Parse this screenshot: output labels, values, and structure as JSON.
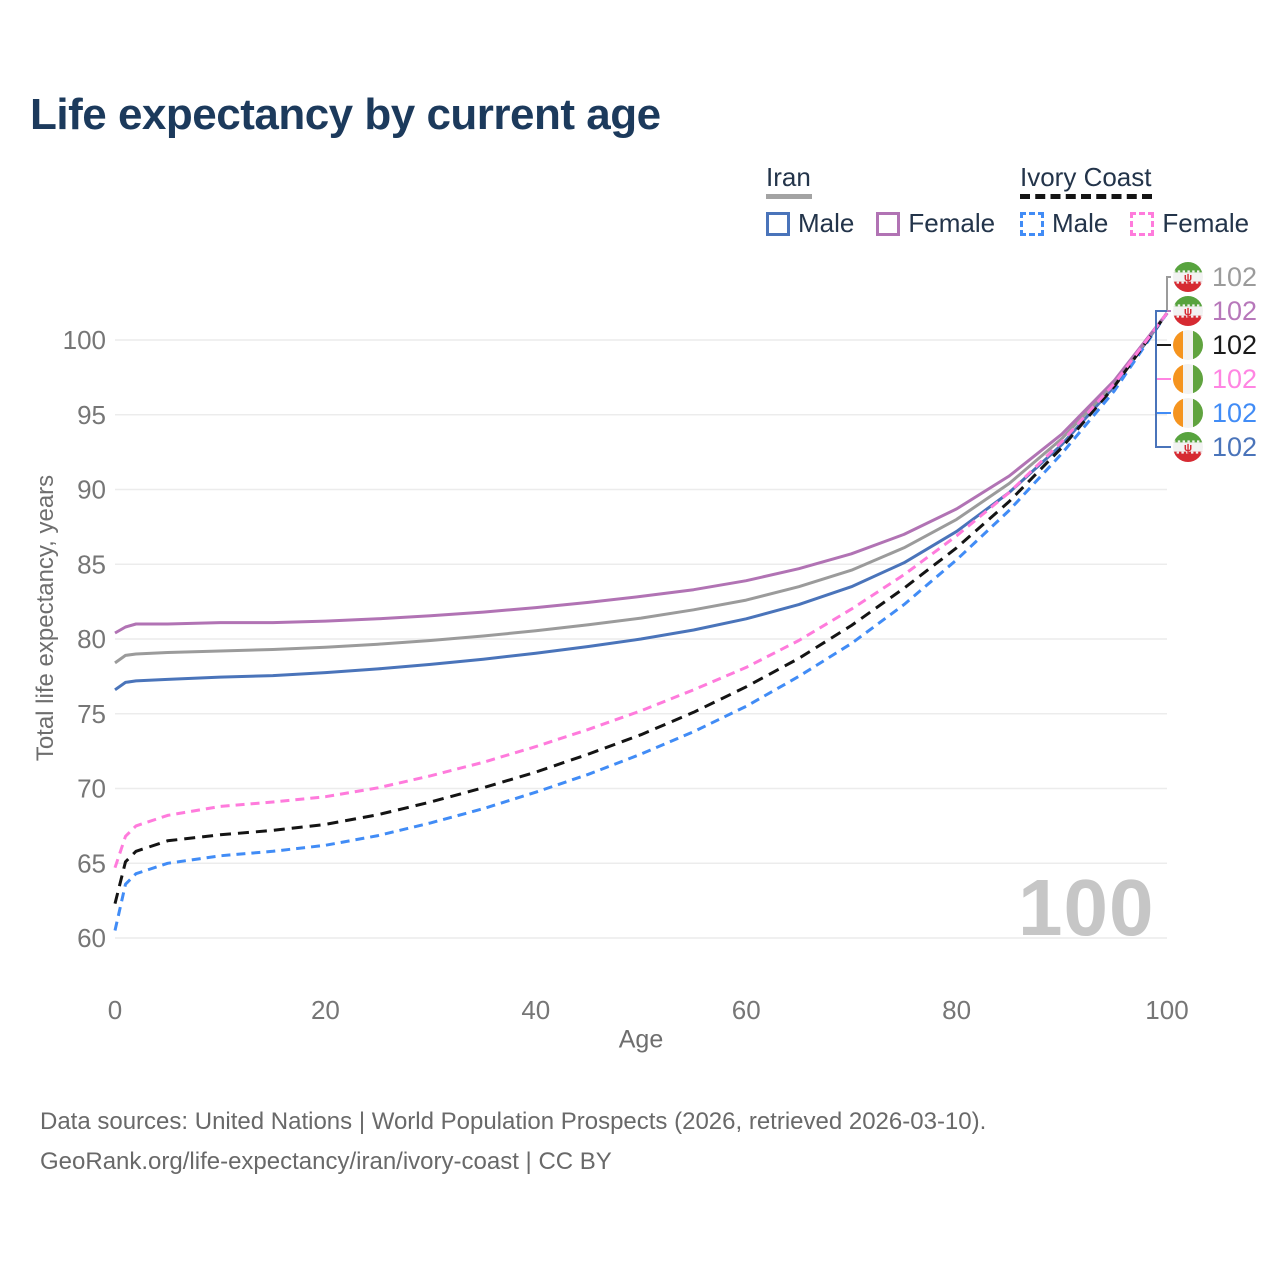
{
  "title": "Life expectancy by current age",
  "legend": {
    "groups": [
      {
        "id": "iran",
        "label": "Iran",
        "line_style": "solid",
        "line_color": "#a3a3a3",
        "items": [
          {
            "id": "iran-male",
            "label": "Male",
            "color": "#4a74ba",
            "style": "solid"
          },
          {
            "id": "iran-female",
            "label": "Female",
            "color": "#b173b4",
            "style": "solid"
          }
        ]
      },
      {
        "id": "ivory-coast",
        "label": "Ivory Coast",
        "line_style": "dashed",
        "line_color": "#141414",
        "items": [
          {
            "id": "ivory-coast-male",
            "label": "Male",
            "color": "#418cf6",
            "style": "dashed"
          },
          {
            "id": "ivory-coast-female",
            "label": "Female",
            "color": "#ff7bdc",
            "style": "dashed"
          }
        ]
      }
    ]
  },
  "axis": {
    "x_title": "Age",
    "y_title": "Total life expectancy, years"
  },
  "watermark": "100",
  "chart_data": {
    "type": "line",
    "title": "Life expectancy by current age",
    "xlabel": "Age",
    "ylabel": "Total life expectancy, years",
    "xlim": [
      0,
      100
    ],
    "ylim": [
      60,
      102
    ],
    "x_ticks": [
      0,
      20,
      40,
      60,
      80,
      100
    ],
    "y_ticks": [
      60,
      65,
      70,
      75,
      80,
      85,
      90,
      95,
      100
    ],
    "grid": "horizontal",
    "legend_position": "top-right",
    "ages": [
      0,
      1,
      2,
      5,
      10,
      15,
      20,
      25,
      30,
      35,
      40,
      45,
      50,
      55,
      60,
      65,
      70,
      75,
      80,
      85,
      90,
      95,
      100
    ],
    "series": [
      {
        "name": "Iran Male",
        "country": "Iran",
        "sex": "Male",
        "style": "solid",
        "color": "#4a74ba",
        "values": [
          76.6,
          77.1,
          77.2,
          77.3,
          77.45,
          77.55,
          77.75,
          78.0,
          78.3,
          78.65,
          79.05,
          79.5,
          80.0,
          80.6,
          81.35,
          82.3,
          83.5,
          85.1,
          87.2,
          89.8,
          93.0,
          96.9,
          101.8
        ]
      },
      {
        "name": "Iran Average",
        "country": "Iran",
        "sex": "All",
        "style": "solid",
        "color": "#9b9b9b",
        "values": [
          78.4,
          78.9,
          79.0,
          79.1,
          79.2,
          79.3,
          79.45,
          79.65,
          79.9,
          80.2,
          80.55,
          80.95,
          81.4,
          81.95,
          82.6,
          83.5,
          84.6,
          86.1,
          88.0,
          90.4,
          93.4,
          97.1,
          101.8
        ]
      },
      {
        "name": "Iran Female",
        "country": "Iran",
        "sex": "Female",
        "style": "solid",
        "color": "#b173b4",
        "values": [
          80.4,
          80.8,
          81.0,
          81.0,
          81.1,
          81.1,
          81.2,
          81.35,
          81.55,
          81.8,
          82.1,
          82.45,
          82.85,
          83.3,
          83.9,
          84.7,
          85.7,
          87.0,
          88.7,
          90.9,
          93.7,
          97.3,
          101.8
        ]
      },
      {
        "name": "Ivory Coast Male",
        "country": "Ivory Coast",
        "sex": "Male",
        "style": "dashed",
        "color": "#418cf6",
        "values": [
          60.5,
          63.6,
          64.3,
          65.0,
          65.5,
          65.8,
          66.2,
          66.85,
          67.7,
          68.65,
          69.75,
          70.95,
          72.3,
          73.8,
          75.5,
          77.5,
          79.7,
          82.3,
          85.3,
          88.6,
          92.4,
          96.6,
          101.8
        ]
      },
      {
        "name": "Ivory Coast Average",
        "country": "Ivory Coast",
        "sex": "All",
        "style": "dashed",
        "color": "#141414",
        "values": [
          62.3,
          65.1,
          65.8,
          66.5,
          66.9,
          67.2,
          67.6,
          68.25,
          69.1,
          70.05,
          71.1,
          72.3,
          73.6,
          75.1,
          76.8,
          78.7,
          80.9,
          83.4,
          86.1,
          89.2,
          92.8,
          96.9,
          101.8
        ]
      },
      {
        "name": "Ivory Coast Female",
        "country": "Ivory Coast",
        "sex": "Female",
        "style": "dashed",
        "color": "#ff7bdc",
        "values": [
          64.7,
          66.8,
          67.5,
          68.2,
          68.8,
          69.1,
          69.45,
          70.05,
          70.85,
          71.75,
          72.8,
          73.95,
          75.2,
          76.6,
          78.1,
          79.9,
          82.0,
          84.3,
          86.9,
          89.8,
          93.2,
          97.1,
          101.8
        ]
      }
    ]
  },
  "end_labels": [
    {
      "series": "Iran Average",
      "flag": "iran",
      "value": "102",
      "color": "#9b9b9b"
    },
    {
      "series": "Iran Female",
      "flag": "iran",
      "value": "102",
      "color": "#b778ba"
    },
    {
      "series": "Ivory Coast Average",
      "flag": "ivory-coast",
      "value": "102",
      "color": "#1a1a1a"
    },
    {
      "series": "Ivory Coast Female",
      "flag": "ivory-coast",
      "value": "102",
      "color": "#ff85e2"
    },
    {
      "series": "Ivory Coast Male",
      "flag": "ivory-coast",
      "value": "102",
      "color": "#418cf6"
    },
    {
      "series": "Iran Male",
      "flag": "iran",
      "value": "102",
      "color": "#4a74ba"
    }
  ],
  "footer": {
    "line1": "Data sources: United Nations | World Population Prospects (2026, retrieved 2026-03-10).",
    "line2": "GeoRank.org/life-expectancy/iran/ivory-coast | CC BY"
  }
}
